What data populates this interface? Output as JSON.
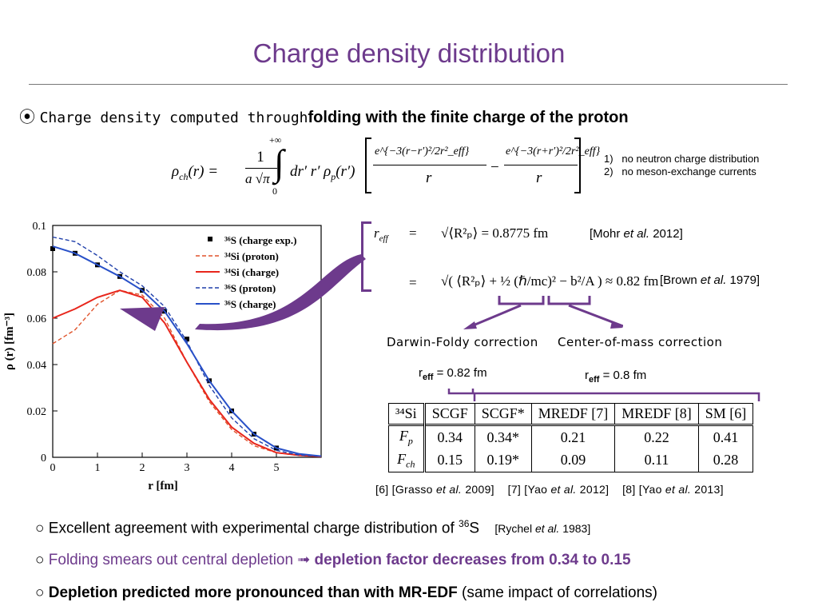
{
  "title": "Charge density distribution",
  "bullet": {
    "symbol": "⦿",
    "text_plain": "Charge density computed through",
    "text_bold": "folding with the finite charge of the proton"
  },
  "formula": {
    "lhs": "ρ",
    "lhs_sub": "ch",
    "arg": "(r) =",
    "pref_num": "1",
    "pref_den": "a √π",
    "int_upper": "+∞",
    "int_lower": "0",
    "integrand": "dr′ r′ ρ",
    "integrand_sub": "p",
    "integrand_arg": "(r′)",
    "num1": "e^{−3(r−r′)²/2r²_eff}",
    "num2": "e^{−3(r+r′)²/2r²_eff}",
    "den": "r",
    "minus": "−"
  },
  "notes": [
    {
      "num": "1)",
      "text": "no neutron charge distribution"
    },
    {
      "num": "2)",
      "text": "no meson-exchange currents"
    }
  ],
  "reff": {
    "lhs": "r",
    "lhs_sub": "eff",
    "eq": "=",
    "line1": "√⟨R²ₚ⟩ = 0.8775 fm",
    "ref1_pre": "[Mohr ",
    "ref1_it": "et al.",
    "ref1_post": " 2012]",
    "line2": "√( ⟨R²ₚ⟩ + ½ (ℏ/mc)² − b²/A ) ≈ 0.82 fm",
    "ref2_pre": "[Brown ",
    "ref2_it": "et al.",
    "ref2_post": " 1979]"
  },
  "corrections": {
    "left": "Darwin-Foldy correction",
    "right": "Center-of-mass correction",
    "left_val_pre": "r",
    "left_val_sub": "eff",
    "left_val_post": " = 0.82 fm",
    "right_val_pre": "r",
    "right_val_sub": "eff",
    "right_val_post": " = 0.8 fm"
  },
  "table": {
    "corner": "³⁴Si",
    "headers": [
      "SCGF",
      "SCGF*",
      "MREDF [7]",
      "MREDF [8]",
      "SM [6]"
    ],
    "rows": [
      {
        "label": "F",
        "label_sub": "p",
        "values": [
          "0.34",
          "0.34*",
          "0.21",
          "0.22",
          "0.41"
        ]
      },
      {
        "label": "F",
        "label_sub": "ch",
        "values": [
          "0.15",
          "0.19*",
          "0.09",
          "0.11",
          "0.28"
        ]
      }
    ]
  },
  "table_refs": [
    {
      "pre": "[6] [Grasso ",
      "it": "et al.",
      "post": " 2009]"
    },
    {
      "pre": "[7] [Yao ",
      "it": "et al.",
      "post": " 2012]"
    },
    {
      "pre": "[8] [Yao ",
      "it": "et al.",
      "post": " 2013]"
    }
  ],
  "chart_data": {
    "type": "line",
    "xlabel": "r [fm]",
    "ylabel": "ρ (r) [fm⁻³]",
    "xlim": [
      0,
      6
    ],
    "ylim": [
      0,
      0.1
    ],
    "xticks": [
      "0",
      "1",
      "2",
      "3",
      "4",
      "5"
    ],
    "yticks": [
      "0",
      "0.02",
      "0.04",
      "0.06",
      "0.08",
      "0.1"
    ],
    "legend_position": "top-right",
    "series": [
      {
        "name": "³⁶S (charge exp.)",
        "style": "points",
        "color": "#000000",
        "x": [
          0,
          0.5,
          1,
          1.5,
          2,
          2.5,
          3,
          3.5,
          4,
          4.5,
          5
        ],
        "y": [
          0.09,
          0.088,
          0.083,
          0.078,
          0.072,
          0.063,
          0.051,
          0.033,
          0.02,
          0.01,
          0.004
        ]
      },
      {
        "name": "³⁴Si (proton)",
        "style": "dashed",
        "color": "#e0522a",
        "x": [
          0,
          0.5,
          1,
          1.5,
          2,
          2.5,
          3,
          3.5,
          4,
          4.5,
          5,
          5.5,
          6
        ],
        "y": [
          0.049,
          0.055,
          0.066,
          0.072,
          0.07,
          0.06,
          0.041,
          0.024,
          0.012,
          0.005,
          0.002,
          0.0008,
          0.0003
        ]
      },
      {
        "name": "³⁴Si (charge)",
        "style": "solid",
        "color": "#e8261c",
        "x": [
          0,
          0.5,
          1,
          1.5,
          2,
          2.5,
          3,
          3.5,
          4,
          4.5,
          5,
          5.5,
          6
        ],
        "y": [
          0.06,
          0.064,
          0.069,
          0.072,
          0.069,
          0.058,
          0.041,
          0.025,
          0.013,
          0.006,
          0.002,
          0.0009,
          0.0003
        ]
      },
      {
        "name": "³⁶S (proton)",
        "style": "dashed",
        "color": "#1f3faa",
        "x": [
          0,
          0.5,
          1,
          1.5,
          2,
          2.5,
          3,
          3.5,
          4,
          4.5,
          5,
          5.5,
          6
        ],
        "y": [
          0.095,
          0.093,
          0.087,
          0.08,
          0.074,
          0.065,
          0.05,
          0.031,
          0.017,
          0.008,
          0.003,
          0.001,
          0.0004
        ]
      },
      {
        "name": "³⁶S (charge)",
        "style": "solid",
        "color": "#2850c8",
        "x": [
          0,
          0.5,
          1,
          1.5,
          2,
          2.5,
          3,
          3.5,
          4,
          4.5,
          5,
          5.5,
          6
        ],
        "y": [
          0.091,
          0.088,
          0.083,
          0.078,
          0.072,
          0.063,
          0.049,
          0.033,
          0.02,
          0.01,
          0.004,
          0.0015,
          0.0005
        ]
      }
    ]
  },
  "bottom": {
    "b1": {
      "marker": "○",
      "text": "Excellent agreement with experimental charge distribution of ",
      "sup": "36",
      "text2": "S",
      "ref_pre": "[Rychel ",
      "ref_it": "et al.",
      "ref_post": " 1983]"
    },
    "b2": {
      "marker": "○",
      "text": "Folding smears out central depletion ",
      "arrow": "➟",
      "bold": "depletion factor decreases from 0.34 to 0.15"
    },
    "b3": {
      "marker": "○",
      "bold": "Depletion predicted more pronounced than with MR-EDF",
      "text": " (same impact of correlations)"
    }
  },
  "colors": {
    "accent": "#6d3a8c",
    "red": "#e8261c",
    "blue": "#2850c8"
  }
}
